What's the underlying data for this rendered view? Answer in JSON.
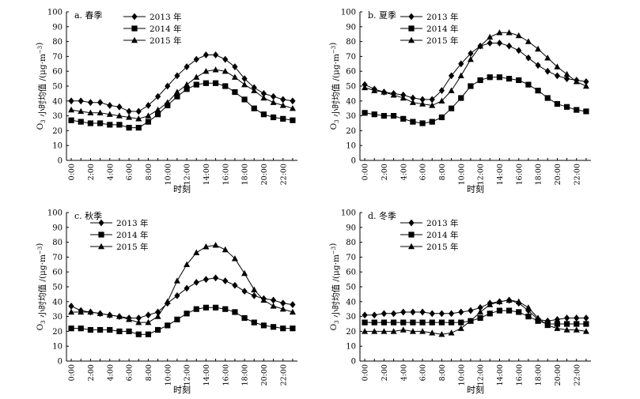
{
  "figure": {
    "ylabel_main": "O",
    "ylabel_sub": "3",
    "ylabel_rest": " 小时均值 /(μg·m",
    "ylabel_sup": "−3",
    "ylabel_end": ")",
    "xlabel": "时刻"
  },
  "chart_data": [
    {
      "type": "line",
      "title": "a. 春季",
      "xlabel": "时刻",
      "ylabel": "O3 小时均值 /(μg·m−3)",
      "x": [
        0,
        1,
        2,
        3,
        4,
        5,
        6,
        7,
        8,
        9,
        10,
        11,
        12,
        13,
        14,
        15,
        16,
        17,
        18,
        19,
        20,
        21,
        22,
        23
      ],
      "xticks": [
        "0:00",
        "2:00",
        "4:00",
        "6:00",
        "8:00",
        "10:00",
        "12:00",
        "14:00",
        "16:00",
        "18:00",
        "20:00",
        "22:00"
      ],
      "ylim": [
        0,
        100
      ],
      "yticks": [
        0,
        10,
        20,
        30,
        40,
        50,
        60,
        70,
        80,
        90,
        100
      ],
      "legend_position": "top-left",
      "series": [
        {
          "name": "2013 年",
          "marker": "diamond",
          "values": [
            40,
            40,
            39,
            39,
            37,
            36,
            33,
            33,
            37,
            43,
            50,
            57,
            63,
            68,
            71,
            71,
            68,
            63,
            55,
            49,
            45,
            43,
            41,
            40
          ]
        },
        {
          "name": "2014 年",
          "marker": "square",
          "values": [
            27,
            26,
            25,
            25,
            24,
            24,
            22,
            22,
            26,
            31,
            37,
            43,
            48,
            51,
            52,
            52,
            50,
            46,
            41,
            35,
            31,
            29,
            28,
            27
          ]
        },
        {
          "name": "2015 年",
          "marker": "triangle",
          "values": [
            34,
            33,
            32,
            32,
            31,
            30,
            29,
            28,
            30,
            34,
            39,
            46,
            51,
            56,
            60,
            61,
            60,
            56,
            51,
            47,
            42,
            39,
            37,
            35
          ]
        }
      ]
    },
    {
      "type": "line",
      "title": "b. 夏季",
      "xlabel": "时刻",
      "ylabel": "O3 小时均值 /(μg·m−3)",
      "x": [
        0,
        1,
        2,
        3,
        4,
        5,
        6,
        7,
        8,
        9,
        10,
        11,
        12,
        13,
        14,
        15,
        16,
        17,
        18,
        19,
        20,
        21,
        22,
        23
      ],
      "xticks": [
        "0:00",
        "2:00",
        "4:00",
        "6:00",
        "8:00",
        "10:00",
        "12:00",
        "14:00",
        "16:00",
        "18:00",
        "20:00",
        "22:00"
      ],
      "ylim": [
        0,
        100
      ],
      "yticks": [
        0,
        10,
        20,
        30,
        40,
        50,
        60,
        70,
        80,
        90,
        100
      ],
      "legend_position": "top-right",
      "series": [
        {
          "name": "2013 年",
          "marker": "diamond",
          "values": [
            51,
            48,
            46,
            45,
            44,
            42,
            41,
            41,
            47,
            57,
            65,
            72,
            77,
            79,
            79,
            77,
            74,
            69,
            64,
            60,
            57,
            55,
            54,
            53
          ]
        },
        {
          "name": "2014 年",
          "marker": "square",
          "values": [
            32,
            31,
            30,
            30,
            28,
            26,
            25,
            26,
            29,
            35,
            42,
            50,
            54,
            56,
            56,
            55,
            54,
            51,
            47,
            42,
            38,
            36,
            34,
            33
          ]
        },
        {
          "name": "2015 年",
          "marker": "triangle",
          "values": [
            49,
            47,
            46,
            44,
            42,
            39,
            38,
            37,
            40,
            47,
            57,
            68,
            77,
            83,
            86,
            86,
            84,
            80,
            75,
            69,
            63,
            58,
            53,
            50
          ]
        }
      ]
    },
    {
      "type": "line",
      "title": "c. 秋季",
      "xlabel": "时刻",
      "ylabel": "O3 小时均值 /(μg·m−3)",
      "x": [
        0,
        1,
        2,
        3,
        4,
        5,
        6,
        7,
        8,
        9,
        10,
        11,
        12,
        13,
        14,
        15,
        16,
        17,
        18,
        19,
        20,
        21,
        22,
        23
      ],
      "xticks": [
        "0:00",
        "2:00",
        "4:00",
        "6:00",
        "8:00",
        "10:00",
        "12:00",
        "14:00",
        "16:00",
        "18:00",
        "20:00",
        "22:00"
      ],
      "ylim": [
        0,
        100
      ],
      "yticks": [
        0,
        10,
        20,
        30,
        40,
        50,
        60,
        70,
        80,
        90,
        100
      ],
      "legend_position": "top-left",
      "series": [
        {
          "name": "2013 年",
          "marker": "diamond",
          "values": [
            37,
            34,
            33,
            32,
            31,
            30,
            29,
            29,
            31,
            33,
            39,
            44,
            49,
            53,
            55,
            56,
            54,
            51,
            47,
            44,
            42,
            41,
            39,
            38
          ]
        },
        {
          "name": "2014 年",
          "marker": "square",
          "values": [
            22,
            22,
            21,
            21,
            21,
            20,
            20,
            18,
            18,
            21,
            24,
            28,
            32,
            35,
            36,
            36,
            35,
            33,
            29,
            26,
            24,
            23,
            22,
            22
          ]
        },
        {
          "name": "2015 年",
          "marker": "triangle",
          "values": [
            33,
            33,
            33,
            32,
            31,
            30,
            28,
            26,
            26,
            30,
            40,
            54,
            65,
            73,
            77,
            78,
            75,
            69,
            59,
            48,
            41,
            37,
            35,
            33
          ]
        }
      ]
    },
    {
      "type": "line",
      "title": "d. 冬季",
      "xlabel": "时刻",
      "ylabel": "O3 小时均值 /(μg·m−3)",
      "x": [
        0,
        1,
        2,
        3,
        4,
        5,
        6,
        7,
        8,
        9,
        10,
        11,
        12,
        13,
        14,
        15,
        16,
        17,
        18,
        19,
        20,
        21,
        22,
        23
      ],
      "xticks": [
        "0:00",
        "2:00",
        "4:00",
        "6:00",
        "8:00",
        "10:00",
        "12:00",
        "14:00",
        "16:00",
        "18:00",
        "20:00",
        "22:00"
      ],
      "ylim": [
        0,
        100
      ],
      "yticks": [
        0,
        10,
        20,
        30,
        40,
        50,
        60,
        70,
        80,
        90,
        100
      ],
      "legend_position": "top-left",
      "series": [
        {
          "name": "2013 年",
          "marker": "diamond",
          "values": [
            31,
            31,
            32,
            32,
            33,
            33,
            33,
            32,
            32,
            32,
            33,
            34,
            36,
            39,
            40,
            41,
            39,
            34,
            28,
            27,
            28,
            29,
            29,
            29
          ]
        },
        {
          "name": "2014 年",
          "marker": "square",
          "values": [
            26,
            26,
            26,
            26,
            26,
            26,
            26,
            26,
            26,
            26,
            26,
            27,
            29,
            32,
            34,
            34,
            33,
            30,
            27,
            25,
            25,
            25,
            25,
            25
          ]
        },
        {
          "name": "2015 年",
          "marker": "triangle",
          "values": [
            20,
            20,
            20,
            20,
            21,
            20,
            20,
            19,
            18,
            19,
            22,
            27,
            33,
            38,
            40,
            41,
            40,
            36,
            29,
            24,
            22,
            21,
            21,
            20
          ]
        }
      ]
    }
  ]
}
